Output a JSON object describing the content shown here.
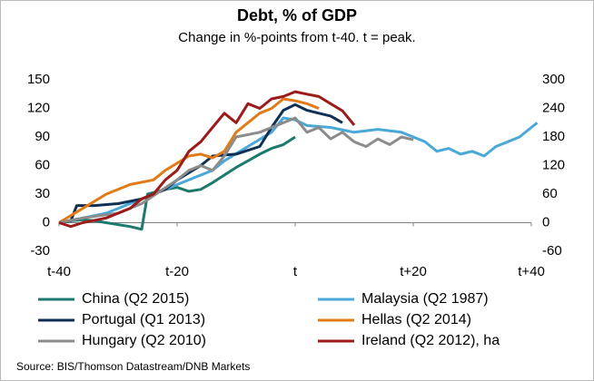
{
  "chart_data": {
    "type": "line",
    "title": "Debt, % of GDP",
    "subtitle": "Change in %-points from t-40. t = peak.",
    "source": "Source:  BIS/Thomson  Datastream/DNB  Markets",
    "xlim": [
      -40,
      40
    ],
    "xticks": [
      {
        "value": -40,
        "label": "t-40"
      },
      {
        "value": -20,
        "label": "t-20"
      },
      {
        "value": 0,
        "label": "t"
      },
      {
        "value": 20,
        "label": "t+20"
      },
      {
        "value": 40,
        "label": "t+40"
      }
    ],
    "ylim": [
      -30,
      150
    ],
    "yticks": [
      -30,
      0,
      30,
      60,
      90,
      120,
      150
    ],
    "y2lim": [
      -60,
      300
    ],
    "y2ticks": [
      -60,
      0,
      60,
      120,
      180,
      240,
      300
    ],
    "grid": false,
    "series": [
      {
        "name": "China (Q2 2015)",
        "color": "#1b7a6c",
        "x": [
          -40,
          -38,
          -36,
          -34,
          -32,
          -30,
          -28,
          -26,
          -25,
          -22,
          -20,
          -18,
          -16,
          -14,
          -12,
          -10,
          -8,
          -6,
          -4,
          -2,
          0
        ],
        "values": [
          0,
          2,
          3,
          2,
          0,
          -2,
          -4,
          -7,
          30,
          35,
          37,
          33,
          35,
          42,
          50,
          58,
          65,
          72,
          78,
          82,
          90
        ]
      },
      {
        "name": "Malaysia (Q2 1987)",
        "color": "#4aa8d8",
        "x": [
          -40,
          -36,
          -32,
          -28,
          -24,
          -20,
          -16,
          -14,
          -12,
          -8,
          -4,
          -2,
          0,
          2,
          6,
          10,
          14,
          18,
          20,
          22,
          24,
          26,
          28,
          30,
          32,
          34,
          36,
          38,
          40,
          41
        ],
        "values": [
          0,
          5,
          10,
          20,
          30,
          40,
          50,
          55,
          65,
          80,
          95,
          110,
          108,
          102,
          100,
          95,
          98,
          95,
          90,
          85,
          75,
          78,
          72,
          75,
          70,
          80,
          85,
          90,
          100,
          105
        ]
      },
      {
        "name": "Portugal (Q1 2013)",
        "color": "#0f2f55",
        "x": [
          -40,
          -38,
          -37,
          -34,
          -30,
          -26,
          -22,
          -20,
          -16,
          -14,
          -10,
          -6,
          -4,
          -2,
          0,
          2,
          4,
          6,
          8
        ],
        "values": [
          0,
          2,
          18,
          18,
          20,
          25,
          35,
          45,
          60,
          70,
          72,
          80,
          100,
          118,
          124,
          118,
          115,
          112,
          105
        ]
      },
      {
        "name": "Hellas (Q2 2014)",
        "color": "#e07b17",
        "x": [
          -40,
          -36,
          -32,
          -28,
          -24,
          -22,
          -18,
          -16,
          -14,
          -12,
          -10,
          -6,
          -4,
          -2,
          0,
          2,
          4
        ],
        "values": [
          0,
          15,
          30,
          40,
          45,
          55,
          70,
          72,
          68,
          75,
          95,
          115,
          120,
          130,
          128,
          125,
          120
        ]
      },
      {
        "name": "Hungary  (Q2 2010)",
        "color": "#8c8c8c",
        "x": [
          -40,
          -36,
          -30,
          -26,
          -20,
          -18,
          -16,
          -14,
          -12,
          -10,
          -6,
          -4,
          -2,
          0,
          2,
          4,
          6,
          8,
          10,
          12,
          14,
          16,
          18,
          20
        ],
        "values": [
          0,
          5,
          10,
          20,
          45,
          55,
          60,
          55,
          70,
          90,
          95,
          100,
          105,
          110,
          95,
          100,
          88,
          95,
          85,
          80,
          88,
          82,
          90,
          87
        ]
      },
      {
        "name": "Ireland (Q2 2012), ha",
        "color": "#9b1b1b",
        "axis": "y2",
        "x": [
          -40,
          -38,
          -36,
          -32,
          -28,
          -26,
          -24,
          -22,
          -20,
          -18,
          -16,
          -14,
          -12,
          -10,
          -8,
          -6,
          -4,
          -2,
          0,
          2,
          4,
          6,
          8,
          10
        ],
        "values": [
          0,
          -8,
          0,
          10,
          30,
          50,
          60,
          90,
          110,
          150,
          170,
          200,
          230,
          210,
          250,
          240,
          260,
          265,
          275,
          270,
          265,
          250,
          235,
          205
        ]
      }
    ]
  }
}
